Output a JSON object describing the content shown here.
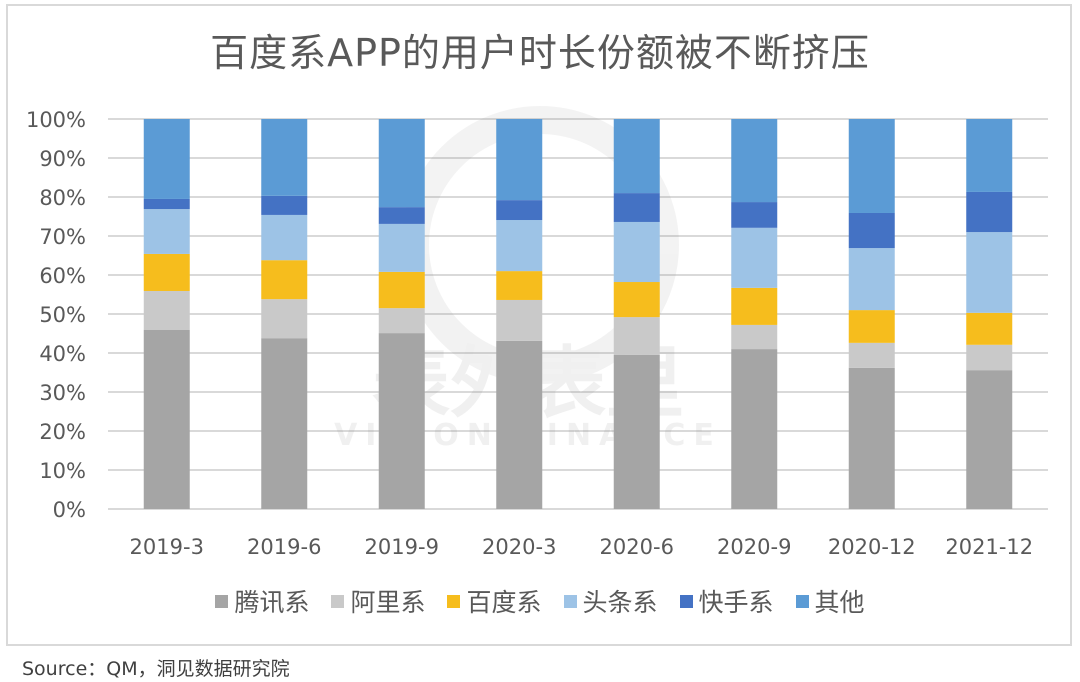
{
  "chart_data": {
    "type": "bar",
    "stacked": true,
    "percent_stacked": true,
    "title": "百度系APP的用户时长份额被不断挤压",
    "xlabel": "",
    "ylabel": "",
    "ylim": [
      0,
      100
    ],
    "yticks": [
      "0%",
      "10%",
      "20%",
      "30%",
      "40%",
      "50%",
      "60%",
      "70%",
      "80%",
      "90%",
      "100%"
    ],
    "grid": true,
    "legend_position": "bottom",
    "categories": [
      "2019-3",
      "2019-6",
      "2019-9",
      "2020-3",
      "2020-6",
      "2020-9",
      "2020-12",
      "2021-12"
    ],
    "series": [
      {
        "name": "腾讯系",
        "color": "#a5a5a5",
        "values": [
          45.9,
          43.8,
          45.1,
          43.1,
          39.5,
          41.0,
          36.2,
          35.6
        ]
      },
      {
        "name": "阿里系",
        "color": "#c9c9c9",
        "values": [
          10.0,
          10.0,
          6.4,
          10.5,
          9.7,
          6.2,
          6.4,
          6.5
        ]
      },
      {
        "name": "百度系",
        "color": "#f6bd1d",
        "values": [
          9.5,
          10.0,
          9.3,
          7.4,
          9.0,
          9.5,
          8.4,
          8.2
        ]
      },
      {
        "name": "头条系",
        "color": "#9dc3e6",
        "values": [
          11.5,
          11.6,
          12.3,
          13.1,
          15.4,
          15.4,
          15.9,
          20.7
        ]
      },
      {
        "name": "快手系",
        "color": "#4472c4",
        "values": [
          2.6,
          4.9,
          4.3,
          5.1,
          7.4,
          6.6,
          9.0,
          10.3
        ]
      },
      {
        "name": "其他",
        "color": "#5b9bd5",
        "values": [
          20.5,
          19.7,
          22.6,
          20.8,
          19.0,
          21.3,
          24.1,
          18.7
        ]
      }
    ]
  },
  "source": "Source：QM，洞见数据研究院",
  "watermark": {
    "cn": "表外表里",
    "en": "VISION FINANCE"
  }
}
